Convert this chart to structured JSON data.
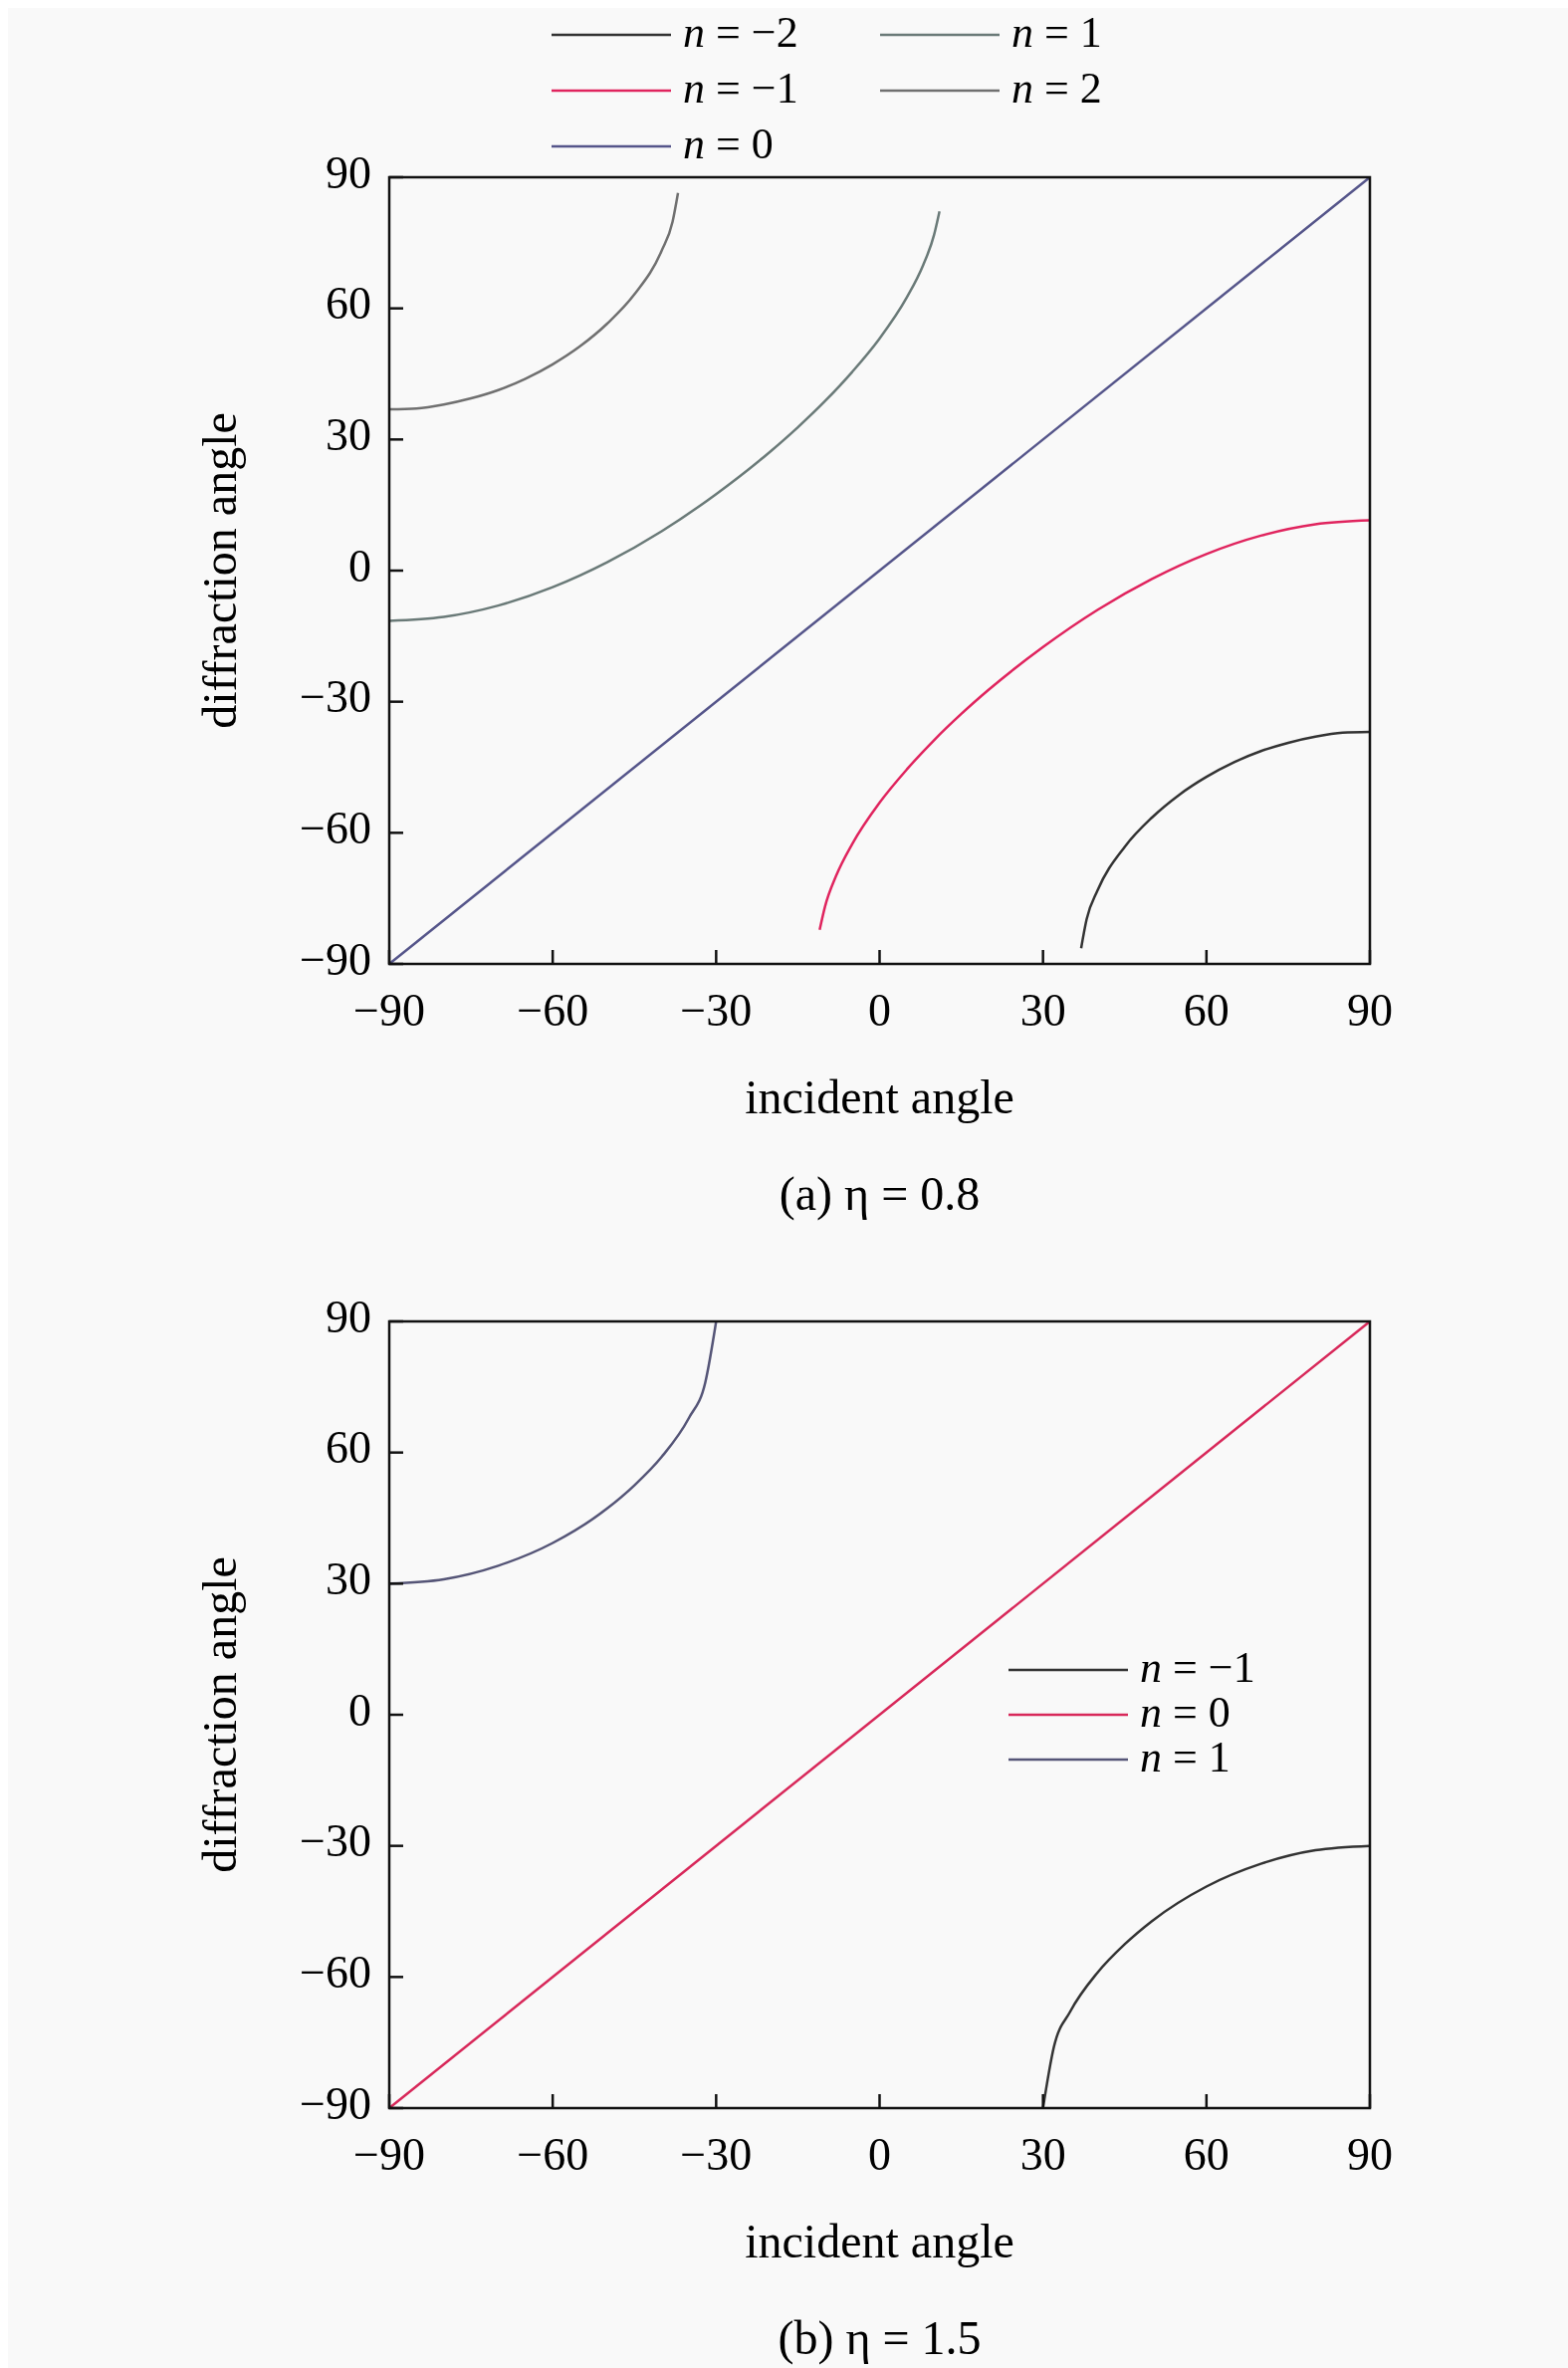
{
  "chart_data": [
    {
      "type": "line",
      "title": "(a) η = 0.8",
      "xlabel": "incident angle",
      "ylabel": "diffraction angle",
      "xlim": [
        -90,
        90
      ],
      "ylim": [
        -90,
        90
      ],
      "xticks": [
        -90,
        -60,
        -30,
        0,
        30,
        60,
        90
      ],
      "yticks": [
        -90,
        -60,
        -30,
        0,
        30,
        60,
        90
      ],
      "legend": "top",
      "grid": false,
      "series": [
        {
          "name": "n = −2",
          "color": "#333333",
          "x": [
            37,
            38,
            40,
            45,
            50,
            55,
            60,
            65,
            70,
            75,
            80,
            85,
            90
          ],
          "values": [
            -86.4,
            -79.8,
            -73.2,
            -63.2,
            -56.5,
            -51.3,
            -47.2,
            -43.9,
            -41.3,
            -39.4,
            -38.0,
            -37.1,
            -36.9
          ]
        },
        {
          "name": "n = −1",
          "color": "#e0245e",
          "x": [
            -11,
            -10,
            -8,
            -5,
            0,
            5,
            10,
            15,
            20,
            30,
            40,
            50,
            60,
            70,
            80,
            90
          ],
          "values": [
            -82.2,
            -76.8,
            -69.9,
            -62.5,
            -53.1,
            -45.5,
            -38.8,
            -32.8,
            -27.3,
            -17.5,
            -9.0,
            -1.9,
            3.8,
            8.0,
            10.6,
            11.5
          ]
        },
        {
          "name": "n = 0",
          "color": "#55558a",
          "x": [
            -90,
            90
          ],
          "values": [
            -90,
            90
          ]
        },
        {
          "name": "n = 1",
          "color": "#6a7a78",
          "x": [
            -90,
            -80,
            -70,
            -60,
            -50,
            -40,
            -30,
            -20,
            -15,
            -10,
            -5,
            0,
            5,
            8,
            10,
            11
          ],
          "values": [
            -11.5,
            -10.6,
            -8.0,
            -3.8,
            1.9,
            9.0,
            17.5,
            27.3,
            32.8,
            38.8,
            45.5,
            53.1,
            62.5,
            69.9,
            76.8,
            82.2
          ]
        },
        {
          "name": "n = 2",
          "color": "#707070",
          "x": [
            -90,
            -85,
            -80,
            -75,
            -70,
            -65,
            -60,
            -55,
            -50,
            -45,
            -40,
            -38,
            -37
          ],
          "values": [
            36.9,
            37.1,
            38.0,
            39.4,
            41.3,
            43.9,
            47.2,
            51.3,
            56.5,
            63.2,
            73.2,
            79.8,
            86.4
          ]
        }
      ]
    },
    {
      "type": "line",
      "title": "(b) η = 1.5",
      "xlabel": "incident angle",
      "ylabel": "diffraction angle",
      "xlim": [
        -90,
        90
      ],
      "ylim": [
        -90,
        90
      ],
      "xticks": [
        -90,
        -60,
        -30,
        0,
        30,
        60,
        90
      ],
      "yticks": [
        -90,
        -60,
        -30,
        0,
        30,
        60,
        90
      ],
      "legend": "right",
      "grid": false,
      "series": [
        {
          "name": "n = −1",
          "color": "#333333",
          "x": [
            30,
            32,
            35,
            40,
            45,
            50,
            60,
            70,
            80,
            90
          ],
          "values": [
            -90,
            -76.0,
            -67.9,
            -59.0,
            -52.5,
            -47.2,
            -39.3,
            -34.1,
            -31.0,
            -30
          ]
        },
        {
          "name": "n = 0",
          "color": "#d8285a",
          "x": [
            -90,
            90
          ],
          "values": [
            -90,
            90
          ]
        },
        {
          "name": "n = 1",
          "color": "#555577",
          "x": [
            -90,
            -80,
            -70,
            -60,
            -50,
            -45,
            -40,
            -35,
            -32,
            -30
          ],
          "values": [
            30,
            31.0,
            34.1,
            39.3,
            47.2,
            52.5,
            59.0,
            67.9,
            76.0,
            90
          ]
        }
      ]
    }
  ]
}
